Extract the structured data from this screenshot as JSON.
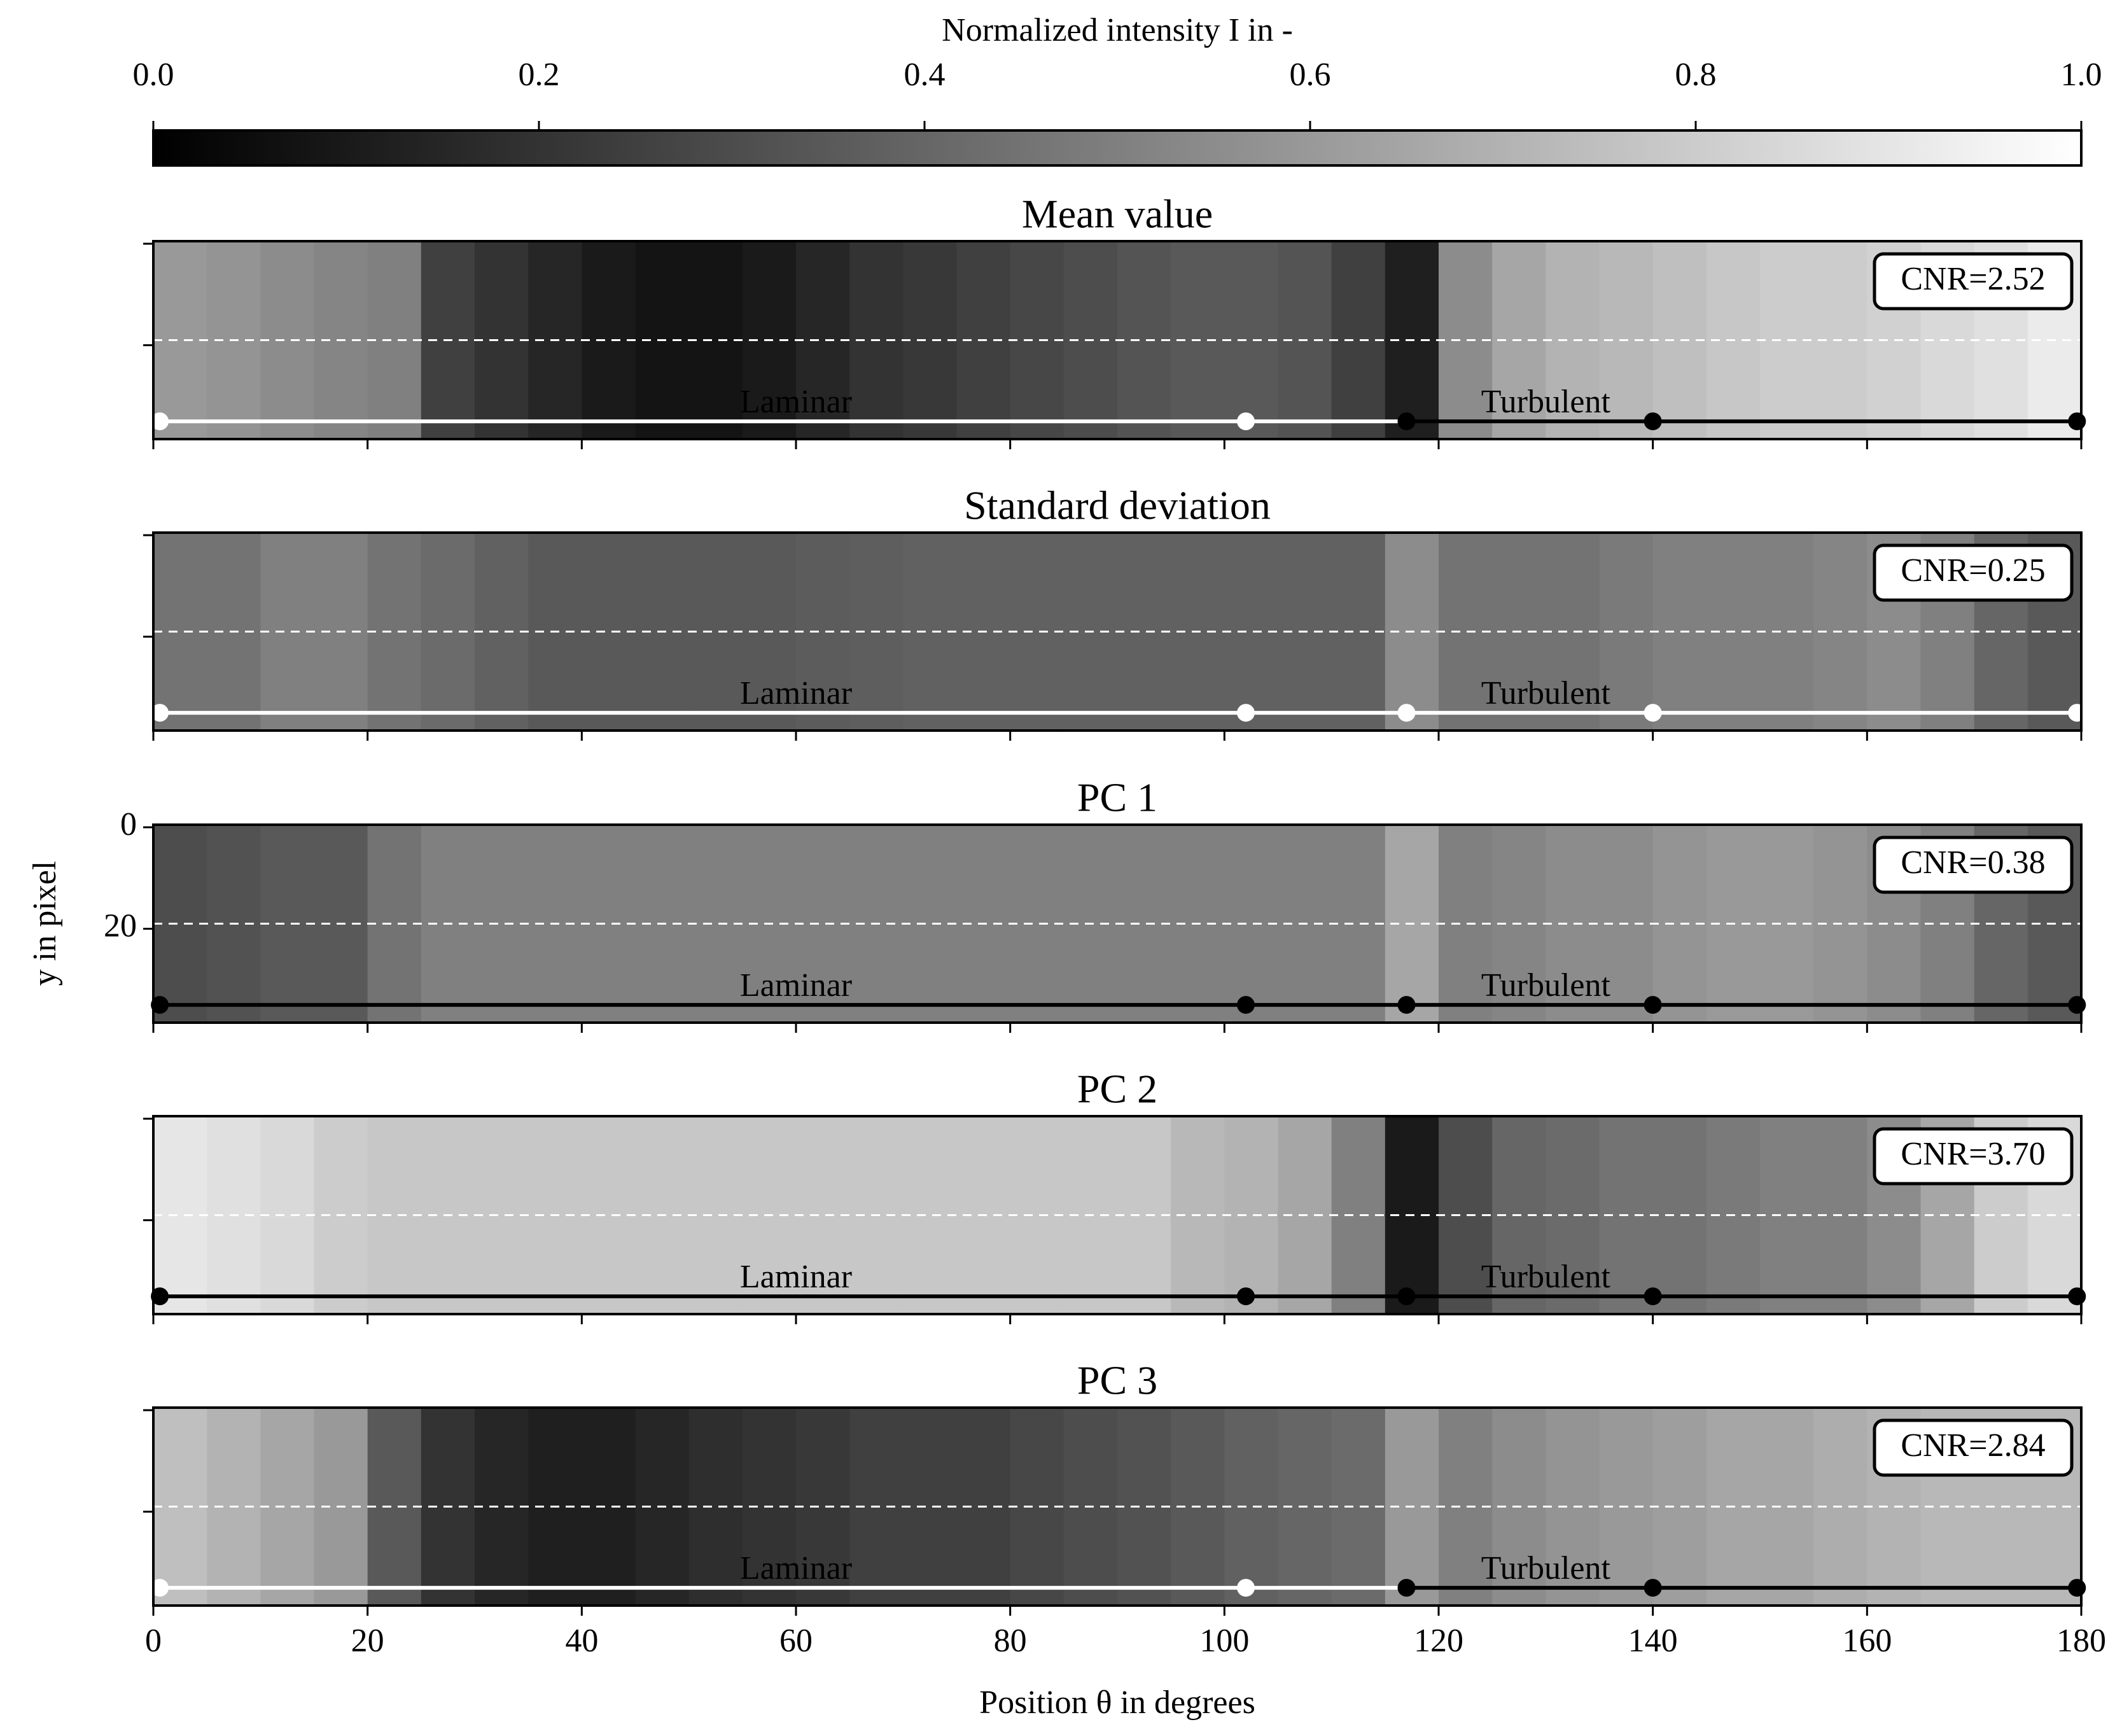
{
  "chart_data": {
    "type": "heatmap",
    "colorbar": {
      "label": "Normalized intensity I in -",
      "lim": [
        0,
        1
      ],
      "ticks": [
        {
          "value": 0,
          "label": "0.0"
        },
        {
          "value": 0.2,
          "label": "0.2"
        },
        {
          "value": 0.4,
          "label": "0.4"
        },
        {
          "value": 0.6,
          "label": "0.6"
        },
        {
          "value": 0.8,
          "label": "0.8"
        },
        {
          "value": 1,
          "label": "1.0"
        }
      ]
    },
    "xlabel": "Position θ in degrees",
    "ylabel": "y in pixel",
    "xlim": [
      0,
      180
    ],
    "xticks": [
      0,
      20,
      40,
      60,
      80,
      100,
      120,
      140,
      160,
      180
    ],
    "ylim": [
      38.5,
      -0.5
    ],
    "yticks": [
      0,
      20
    ],
    "bins": [
      0,
      5,
      10,
      15,
      20,
      25,
      30,
      35,
      40,
      45,
      50,
      55,
      60,
      65,
      70,
      75,
      80,
      85,
      90,
      95,
      100,
      105,
      110,
      115,
      120,
      125,
      130,
      135,
      140,
      145,
      150,
      155,
      160,
      165,
      170,
      175,
      180
    ],
    "guide_y": 19,
    "marker_y": 35,
    "markers": [
      0.6,
      102,
      117,
      140,
      179.6
    ],
    "regions": [
      {
        "label": "Laminar",
        "x": 60
      },
      {
        "label": "Turbulent",
        "x": 130
      }
    ],
    "panels": [
      {
        "title": "Mean value",
        "cnr": "CNR=2.52",
        "marker_colors": [
          "#ffffff",
          "#ffffff",
          "#000000",
          "#000000",
          "#000000"
        ],
        "values": [
          0.6,
          0.58,
          0.55,
          0.52,
          0.5,
          0.25,
          0.2,
          0.15,
          0.1,
          0.08,
          0.08,
          0.1,
          0.15,
          0.2,
          0.22,
          0.25,
          0.28,
          0.3,
          0.33,
          0.35,
          0.35,
          0.33,
          0.25,
          0.12,
          0.55,
          0.65,
          0.7,
          0.72,
          0.75,
          0.78,
          0.8,
          0.8,
          0.82,
          0.85,
          0.88,
          0.92
        ]
      },
      {
        "title": "Standard deviation",
        "cnr": "CNR=0.25",
        "marker_colors": [
          "#ffffff",
          "#ffffff",
          "#ffffff",
          "#ffffff",
          "#ffffff"
        ],
        "values": [
          0.45,
          0.45,
          0.5,
          0.5,
          0.45,
          0.42,
          0.38,
          0.35,
          0.35,
          0.35,
          0.35,
          0.35,
          0.36,
          0.37,
          0.38,
          0.38,
          0.38,
          0.38,
          0.38,
          0.38,
          0.38,
          0.38,
          0.38,
          0.55,
          0.45,
          0.45,
          0.45,
          0.48,
          0.5,
          0.5,
          0.5,
          0.52,
          0.55,
          0.5,
          0.4,
          0.35
        ]
      },
      {
        "title": "PC 1",
        "cnr": "CNR=0.38",
        "marker_colors": [
          "#000000",
          "#000000",
          "#000000",
          "#000000",
          "#000000"
        ],
        "values": [
          0.3,
          0.32,
          0.35,
          0.35,
          0.45,
          0.5,
          0.5,
          0.5,
          0.5,
          0.5,
          0.5,
          0.5,
          0.5,
          0.5,
          0.5,
          0.5,
          0.5,
          0.5,
          0.5,
          0.5,
          0.5,
          0.5,
          0.5,
          0.65,
          0.5,
          0.52,
          0.55,
          0.55,
          0.58,
          0.6,
          0.6,
          0.58,
          0.55,
          0.5,
          0.4,
          0.35
        ]
      },
      {
        "title": "PC 2",
        "cnr": "CNR=3.70",
        "marker_colors": [
          "#000000",
          "#000000",
          "#000000",
          "#000000",
          "#000000"
        ],
        "values": [
          0.9,
          0.88,
          0.85,
          0.8,
          0.78,
          0.78,
          0.78,
          0.78,
          0.78,
          0.78,
          0.78,
          0.78,
          0.78,
          0.78,
          0.78,
          0.78,
          0.78,
          0.78,
          0.78,
          0.72,
          0.7,
          0.65,
          0.5,
          0.1,
          0.3,
          0.4,
          0.42,
          0.45,
          0.45,
          0.48,
          0.5,
          0.5,
          0.55,
          0.65,
          0.8,
          0.85
        ]
      },
      {
        "title": "PC 3",
        "cnr": "CNR=2.84",
        "marker_colors": [
          "#ffffff",
          "#ffffff",
          "#000000",
          "#000000",
          "#000000"
        ],
        "values": [
          0.75,
          0.7,
          0.65,
          0.6,
          0.35,
          0.2,
          0.15,
          0.12,
          0.12,
          0.15,
          0.18,
          0.2,
          0.22,
          0.25,
          0.25,
          0.25,
          0.28,
          0.3,
          0.32,
          0.35,
          0.38,
          0.4,
          0.42,
          0.6,
          0.5,
          0.55,
          0.58,
          0.6,
          0.62,
          0.65,
          0.65,
          0.68,
          0.7,
          0.72,
          0.72,
          0.72
        ]
      }
    ]
  }
}
